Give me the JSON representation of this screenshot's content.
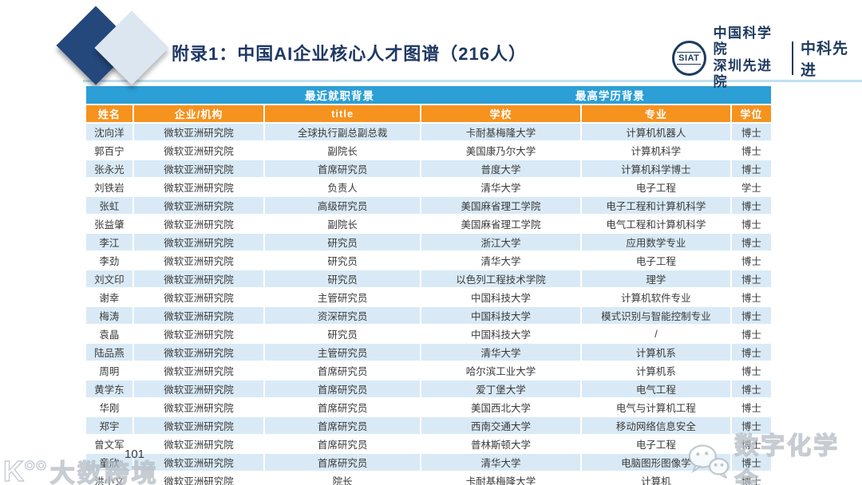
{
  "slide": {
    "title": "附录1：中国AI企业核心人才图谱（216人）",
    "page_number": "101"
  },
  "logo": {
    "seal_text": "SIAT",
    "org_line1": "中国科学院",
    "org_line2": "深圳先进院",
    "org_short": "中科先进"
  },
  "table": {
    "group_headers": [
      {
        "label": "最近就职背景"
      },
      {
        "label": "最高学历背景"
      }
    ],
    "columns": [
      "姓名",
      "企业/机构",
      "title",
      "学校",
      "专业",
      "学位"
    ],
    "rows": [
      [
        "沈向洋",
        "微软亚洲研究院",
        "全球执行副总副总裁",
        "卡耐基梅隆大学",
        "计算机机器人",
        "博士"
      ],
      [
        "郭百宁",
        "微软亚洲研究院",
        "副院长",
        "美国康乃尔大学",
        "计算机科学",
        "博士"
      ],
      [
        "张永光",
        "微软亚洲研究院",
        "首席研究员",
        "普度大学",
        "计算机科学博士",
        "博士"
      ],
      [
        "刘铁岩",
        "微软亚洲研究院",
        "负责人",
        "清华大学",
        "电子工程",
        "学士"
      ],
      [
        "张虹",
        "微软亚洲研究院",
        "高级研究员",
        "美国麻省理工学院",
        "电子工程和计算机科学",
        "博士"
      ],
      [
        "张益肇",
        "微软亚洲研究院",
        "副院长",
        "美国麻省理工学院",
        "电气工程和计算机科学",
        "博士"
      ],
      [
        "李江",
        "微软亚洲研究院",
        "研究员",
        "浙江大学",
        "应用数学专业",
        "博士"
      ],
      [
        "李劲",
        "微软亚洲研究院",
        "研究员",
        "清华大学",
        "电子工程",
        "博士"
      ],
      [
        "刘文印",
        "微软亚洲研究院",
        "研究员",
        "以色列工程技术学院",
        "理学",
        "博士"
      ],
      [
        "谢幸",
        "微软亚洲研究院",
        "主管研究员",
        "中国科技大学",
        "计算机软件专业",
        "博士"
      ],
      [
        "梅涛",
        "微软亚洲研究院",
        "资深研究员",
        "中国科技大学",
        "模式识别与智能控制专业",
        "博士"
      ],
      [
        "袁晶",
        "微软亚洲研究院",
        "研究员",
        "中国科技大学",
        "/",
        "博士"
      ],
      [
        "陆品燕",
        "微软亚洲研究院",
        "主管研究员",
        "清华大学",
        "计算机系",
        "博士"
      ],
      [
        "周明",
        "微软亚洲研究院",
        "首席研究员",
        "哈尔滨工业大学",
        "计算机系",
        "博士"
      ],
      [
        "黄学东",
        "微软亚洲研究院",
        "首席研究员",
        "爱丁堡大学",
        "电气工程",
        "博士"
      ],
      [
        "华刚",
        "微软亚洲研究院",
        "首席研究员",
        "美国西北大学",
        "电气与计算机工程",
        "博士"
      ],
      [
        "郑宇",
        "微软亚洲研究院",
        "首席研究员",
        "西南交通大学",
        "移动网络信息安全",
        "博士"
      ],
      [
        "曾文军",
        "微软亚洲研究院",
        "首席研究员",
        "普林斯顿大学",
        "电子工程",
        "博士"
      ],
      [
        "童欣",
        "微软亚洲研究院",
        "首席研究员",
        "清华大学",
        "电脑图形图像学",
        "博士"
      ],
      [
        "洪小文",
        "微软亚洲研究院",
        "院长",
        "卡耐基梅隆大学",
        "计算机",
        "博士"
      ]
    ]
  },
  "watermarks": {
    "bottom_left_logo": "K°°",
    "bottom_left": "大数跨境",
    "bottom_right": "数字化学会"
  },
  "colors": {
    "group_header_blue": "#2B9FD6",
    "column_header_orange": "#F6921E",
    "row_alt_blue": "#D9EAF6",
    "title_navy": "#1F3864",
    "logo_navy": "#1E3A5F"
  }
}
